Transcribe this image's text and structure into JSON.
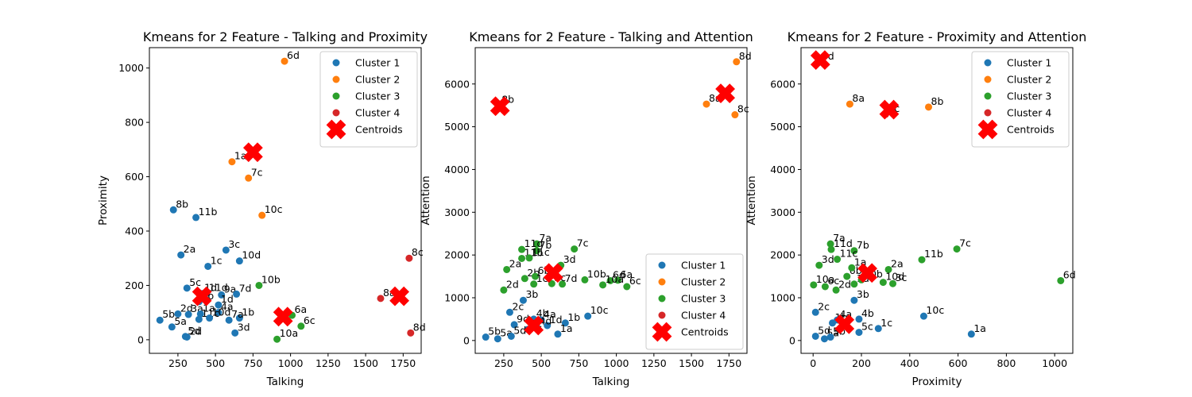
{
  "chart_data": [
    {
      "type": "scatter",
      "title": "Kmeans for 2 Feature - Talking and Proximity",
      "xlabel": "Talking",
      "ylabel": "Proximity",
      "xlim": [
        60,
        1870
      ],
      "ylim": [
        -50,
        1075
      ],
      "xticks": [
        250,
        500,
        750,
        1000,
        1250,
        1500,
        1750
      ],
      "yticks": [
        0,
        200,
        400,
        600,
        800,
        1000
      ],
      "legend": "top-right",
      "legend_entries": [
        "Cluster 1",
        "Cluster 2",
        "Cluster 3",
        "Cluster 4",
        "Centroids"
      ],
      "series": [
        {
          "name": "Cluster 1",
          "color": "#1f77b4",
          "points": [
            {
              "label": "8b",
              "x": 220,
              "y": 478
            },
            {
              "label": "11b",
              "x": 370,
              "y": 450
            },
            {
              "label": "2a",
              "x": 270,
              "y": 312
            },
            {
              "label": "3c",
              "x": 570,
              "y": 330
            },
            {
              "label": "1c",
              "x": 450,
              "y": 270
            },
            {
              "label": "10d",
              "x": 660,
              "y": 290
            },
            {
              "label": "5c",
              "x": 310,
              "y": 190
            },
            {
              "label": "1d",
              "x": 410,
              "y": 170
            },
            {
              "label": "11d",
              "x": 440,
              "y": 170
            },
            {
              "label": "9a",
              "x": 540,
              "y": 165
            },
            {
              "label": "7d",
              "x": 640,
              "y": 168
            },
            {
              "label": "3b",
              "x": 390,
              "y": 140
            },
            {
              "label": "1d",
              "x": 520,
              "y": 128
            },
            {
              "label": "4a",
              "x": 520,
              "y": 100
            },
            {
              "label": "2d",
              "x": 250,
              "y": 95
            },
            {
              "label": "3a",
              "x": 320,
              "y": 93
            },
            {
              "label": "1a",
              "x": 400,
              "y": 95
            },
            {
              "label": "1b",
              "x": 660,
              "y": 80
            },
            {
              "label": "7a",
              "x": 590,
              "y": 72
            },
            {
              "label": "11c",
              "x": 390,
              "y": 75
            },
            {
              "label": "10d",
              "x": 460,
              "y": 80
            },
            {
              "label": "5b",
              "x": 130,
              "y": 72
            },
            {
              "label": "5a",
              "x": 210,
              "y": 47
            },
            {
              "label": "3d",
              "x": 630,
              "y": 25
            },
            {
              "label": "5d",
              "x": 300,
              "y": 12
            },
            {
              "label": "2d",
              "x": 310,
              "y": 10
            }
          ]
        },
        {
          "name": "Cluster 2",
          "color": "#ff7f0e",
          "points": [
            {
              "label": "6d",
              "x": 960,
              "y": 1025
            },
            {
              "label": "1a",
              "x": 610,
              "y": 655
            },
            {
              "label": "7c",
              "x": 720,
              "y": 595
            },
            {
              "label": "10c",
              "x": 810,
              "y": 458
            }
          ]
        },
        {
          "name": "Cluster 3",
          "color": "#2ca02c",
          "points": [
            {
              "label": "10b",
              "x": 790,
              "y": 200
            },
            {
              "label": "6a",
              "x": 1010,
              "y": 90
            },
            {
              "label": "6c",
              "x": 1070,
              "y": 50
            },
            {
              "label": "10a",
              "x": 910,
              "y": 2
            }
          ]
        },
        {
          "name": "Cluster 4",
          "color": "#d62728",
          "points": [
            {
              "label": "8c",
              "x": 1790,
              "y": 300
            },
            {
              "label": "8a",
              "x": 1600,
              "y": 152
            },
            {
              "label": "8d",
              "x": 1800,
              "y": 25
            }
          ]
        }
      ],
      "centroids": {
        "name": "Centroids",
        "color": "#ff0000",
        "points": [
          {
            "x": 750,
            "y": 690
          },
          {
            "x": 410,
            "y": 160
          },
          {
            "x": 950,
            "y": 85
          },
          {
            "x": 1725,
            "y": 160
          }
        ]
      }
    },
    {
      "type": "scatter",
      "title": "Kmeans for 2 Feature - Talking and Attention",
      "xlabel": "Talking",
      "ylabel": "Attention",
      "xlim": [
        60,
        1870
      ],
      "ylim": [
        -300,
        6850
      ],
      "xticks": [
        250,
        500,
        750,
        1000,
        1250,
        1500,
        1750
      ],
      "yticks": [
        0,
        1000,
        2000,
        3000,
        4000,
        5000,
        6000
      ],
      "legend": "bottom-right",
      "legend_entries": [
        "Cluster 1",
        "Cluster 2",
        "Cluster 3",
        "Cluster 4",
        "Centroids"
      ],
      "series": [
        {
          "name": "Cluster 1",
          "color": "#1f77b4",
          "points": [
            {
              "label": "3b",
              "x": 380,
              "y": 940
            },
            {
              "label": "2c",
              "x": 290,
              "y": 660
            },
            {
              "label": "10c",
              "x": 810,
              "y": 570
            },
            {
              "label": "4b",
              "x": 450,
              "y": 500
            },
            {
              "label": "4a",
              "x": 500,
              "y": 480
            },
            {
              "label": "1b",
              "x": 660,
              "y": 410
            },
            {
              "label": "9d",
              "x": 320,
              "y": 370
            },
            {
              "label": "1d",
              "x": 540,
              "y": 350
            },
            {
              "label": "5c",
              "x": 410,
              "y": 260
            },
            {
              "label": "1a",
              "x": 610,
              "y": 150
            },
            {
              "label": "5b",
              "x": 130,
              "y": 80
            },
            {
              "label": "5a",
              "x": 210,
              "y": 40
            },
            {
              "label": "5d",
              "x": 300,
              "y": 100
            },
            {
              "label": "4d",
              "x": 470,
              "y": 320
            }
          ]
        },
        {
          "name": "Cluster 2",
          "color": "#ff7f0e",
          "points": [
            {
              "label": "8d",
              "x": 1800,
              "y": 6520
            },
            {
              "label": "8a",
              "x": 1600,
              "y": 5530
            },
            {
              "label": "8c",
              "x": 1790,
              "y": 5280
            }
          ]
        },
        {
          "name": "Cluster 3",
          "color": "#2ca02c",
          "points": [
            {
              "label": "7a",
              "x": 470,
              "y": 2260
            },
            {
              "label": "7c",
              "x": 720,
              "y": 2140
            },
            {
              "label": "11d",
              "x": 370,
              "y": 2130
            },
            {
              "label": "7b",
              "x": 470,
              "y": 2100
            },
            {
              "label": "11b",
              "x": 370,
              "y": 1920
            },
            {
              "label": "11c",
              "x": 420,
              "y": 1930
            },
            {
              "label": "3d",
              "x": 630,
              "y": 1760
            },
            {
              "label": "2a",
              "x": 270,
              "y": 1660
            },
            {
              "label": "2b",
              "x": 390,
              "y": 1450
            },
            {
              "label": "6b",
              "x": 460,
              "y": 1500
            },
            {
              "label": "10b",
              "x": 790,
              "y": 1420
            },
            {
              "label": "6d",
              "x": 960,
              "y": 1400
            },
            {
              "label": "6a",
              "x": 1010,
              "y": 1410
            },
            {
              "label": "10a",
              "x": 910,
              "y": 1300
            },
            {
              "label": "6c",
              "x": 1070,
              "y": 1260
            },
            {
              "label": "7d",
              "x": 640,
              "y": 1320
            },
            {
              "label": "3c",
              "x": 570,
              "y": 1330
            },
            {
              "label": "1c",
              "x": 450,
              "y": 1320
            },
            {
              "label": "2d",
              "x": 250,
              "y": 1180
            }
          ]
        },
        {
          "name": "Cluster 4",
          "color": "#d62728",
          "points": [
            {
              "label": "8b",
              "x": 220,
              "y": 5500
            }
          ]
        }
      ],
      "centroids": {
        "name": "Centroids",
        "color": "#ff0000",
        "points": [
          {
            "x": 225,
            "y": 5480
          },
          {
            "x": 1725,
            "y": 5780
          },
          {
            "x": 580,
            "y": 1580
          },
          {
            "x": 450,
            "y": 350
          }
        ]
      }
    },
    {
      "type": "scatter",
      "title": "Kmeans for 2 Feature - Proximity and Attention",
      "xlabel": "Proximity",
      "ylabel": "Attention",
      "xlim": [
        -50,
        1075
      ],
      "ylim": [
        -300,
        6850
      ],
      "xticks": [
        0,
        200,
        400,
        600,
        800,
        1000
      ],
      "yticks": [
        0,
        1000,
        2000,
        3000,
        4000,
        5000,
        6000
      ],
      "legend": "top-right",
      "legend_entries": [
        "Cluster 1",
        "Cluster 2",
        "Cluster 3",
        "Cluster 4",
        "Centroids"
      ],
      "series": [
        {
          "name": "Cluster 1",
          "color": "#1f77b4",
          "points": [
            {
              "label": "1a",
              "x": 655,
              "y": 150
            },
            {
              "label": "10c",
              "x": 458,
              "y": 570
            },
            {
              "label": "3b",
              "x": 170,
              "y": 940
            },
            {
              "label": "2c",
              "x": 10,
              "y": 660
            },
            {
              "label": "1c",
              "x": 270,
              "y": 280
            },
            {
              "label": "1b",
              "x": 80,
              "y": 410
            },
            {
              "label": "4a",
              "x": 100,
              "y": 480
            },
            {
              "label": "4b",
              "x": 190,
              "y": 500
            },
            {
              "label": "5c",
              "x": 190,
              "y": 190
            },
            {
              "label": "5d",
              "x": 10,
              "y": 100
            },
            {
              "label": "5a",
              "x": 47,
              "y": 40
            },
            {
              "label": "5b",
              "x": 72,
              "y": 80
            }
          ]
        },
        {
          "name": "Cluster 2",
          "color": "#ff7f0e",
          "points": [
            {
              "label": "8a",
              "x": 152,
              "y": 5530
            },
            {
              "label": "8b",
              "x": 478,
              "y": 5460
            }
          ]
        },
        {
          "name": "Cluster 3",
          "color": "#2ca02c",
          "points": [
            {
              "label": "7a",
              "x": 72,
              "y": 2260
            },
            {
              "label": "11d",
              "x": 75,
              "y": 2130
            },
            {
              "label": "7b",
              "x": 170,
              "y": 2100
            },
            {
              "label": "7c",
              "x": 595,
              "y": 2140
            },
            {
              "label": "11b",
              "x": 450,
              "y": 1890
            },
            {
              "label": "11c",
              "x": 100,
              "y": 1900
            },
            {
              "label": "3d",
              "x": 25,
              "y": 1760
            },
            {
              "label": "2a",
              "x": 312,
              "y": 1660
            },
            {
              "label": "6b",
              "x": 140,
              "y": 1500
            },
            {
              "label": "10d",
              "x": 290,
              "y": 1360
            },
            {
              "label": "3c",
              "x": 330,
              "y": 1330
            },
            {
              "label": "10a",
              "x": 2,
              "y": 1300
            },
            {
              "label": "6c",
              "x": 50,
              "y": 1260
            },
            {
              "label": "2d",
              "x": 95,
              "y": 1180
            },
            {
              "label": "6d",
              "x": 1025,
              "y": 1400
            },
            {
              "label": "1d",
              "x": 170,
              "y": 1320
            },
            {
              "label": "10b",
              "x": 200,
              "y": 1420
            },
            {
              "label": "1a",
              "x": 160,
              "y": 1700
            }
          ]
        },
        {
          "name": "Cluster 4",
          "color": "#d62728",
          "points": [
            {
              "label": "8d",
              "x": 25,
              "y": 6520
            },
            {
              "label": "8c",
              "x": 300,
              "y": 5290
            }
          ]
        }
      ],
      "centroids": {
        "name": "Centroids",
        "color": "#ff0000",
        "points": [
          {
            "x": 30,
            "y": 6560
          },
          {
            "x": 315,
            "y": 5400
          },
          {
            "x": 225,
            "y": 1580
          },
          {
            "x": 130,
            "y": 380
          }
        ]
      }
    }
  ]
}
